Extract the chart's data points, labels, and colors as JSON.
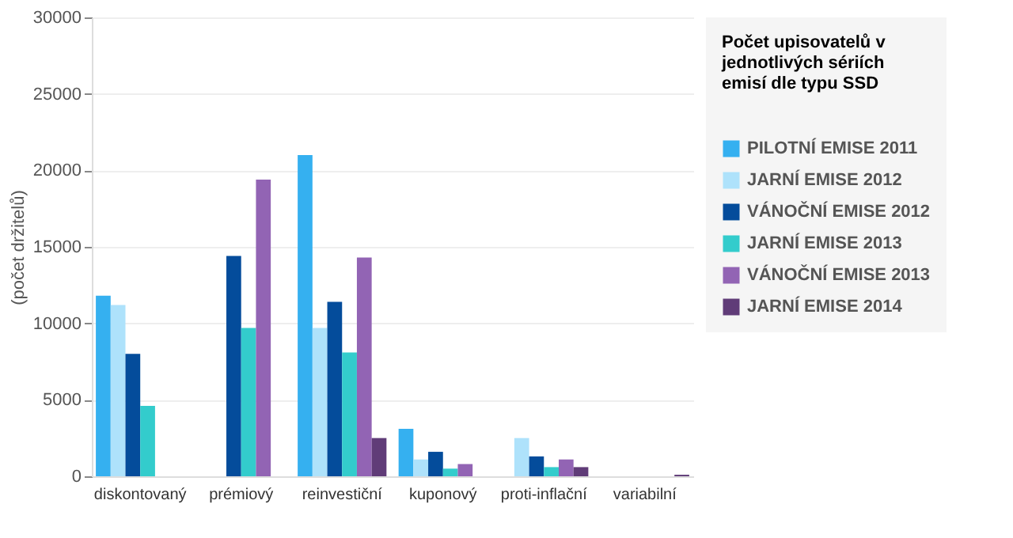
{
  "chart_data": {
    "type": "bar",
    "legend_title": "Počet upisovatelů v jednotlivých sériích emisí dle typu SSD",
    "ylabel": "(počet držitelů)",
    "categories": [
      "diskontovaný",
      "prémiový",
      "reinvestiční",
      "kuponový",
      "proti-inflační",
      "variabilní"
    ],
    "series": [
      {
        "name": "PILOTNÍ EMISE 2011",
        "color": "#35b0f0",
        "values": [
          11800,
          null,
          21000,
          3100,
          null,
          null
        ]
      },
      {
        "name": "JARNÍ EMISE 2012",
        "color": "#aee2fb",
        "values": [
          11200,
          null,
          9700,
          1100,
          2500,
          null
        ]
      },
      {
        "name": "VÁNOČNÍ EMISE 2012",
        "color": "#044c9b",
        "values": [
          8000,
          14400,
          11400,
          1600,
          1300,
          null
        ]
      },
      {
        "name": "JARNÍ EMISE 2013",
        "color": "#33cccc",
        "values": [
          4600,
          9700,
          8100,
          500,
          600,
          null
        ]
      },
      {
        "name": "VÁNOČNÍ EMISE 2013",
        "color": "#9264b4",
        "values": [
          null,
          19400,
          14300,
          800,
          1100,
          null
        ]
      },
      {
        "name": "JARNÍ EMISE 2014",
        "color": "#603c78",
        "values": [
          null,
          null,
          2500,
          null,
          600,
          100
        ]
      }
    ],
    "ylim": [
      0,
      30000
    ],
    "yticks": [
      0,
      5000,
      10000,
      15000,
      20000,
      25000,
      30000
    ],
    "grid": "y",
    "legend": "right"
  }
}
